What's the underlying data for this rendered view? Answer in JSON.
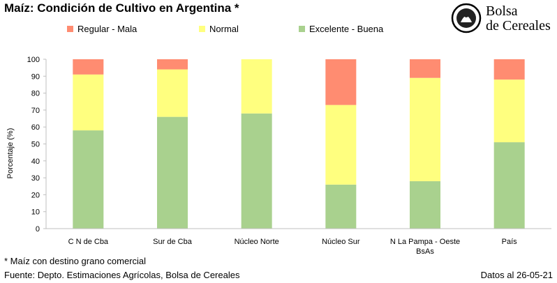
{
  "title": "Maíz: Condición de Cultivo en Argentina *",
  "logo": {
    "line1": "Bolsa",
    "line2": "de Cereales"
  },
  "footnote": "* Maíz con destino grano comercial",
  "source": "Fuente: Depto. Estimaciones Agrícolas, Bolsa de Cereales",
  "date": "Datos al 26-05-21",
  "chart_data": {
    "type": "bar",
    "stacked": true,
    "title": "Maíz: Condición de Cultivo en Argentina *",
    "ylabel": "Porcentaje (%)",
    "xlabel": "",
    "ylim": [
      0,
      100
    ],
    "yticks": [
      0,
      10,
      20,
      30,
      40,
      50,
      60,
      70,
      80,
      90,
      100
    ],
    "categories": [
      "C N de Cba",
      "Sur de Cba",
      "Núcleo Norte",
      "Núcleo Sur",
      "N La Pampa - Oeste BsAs",
      "País"
    ],
    "series": [
      {
        "name": "Excelente - Buena",
        "color": "#a9d18e",
        "values": [
          58,
          66,
          68,
          26,
          28,
          51
        ]
      },
      {
        "name": "Normal",
        "color": "#ffff7f",
        "values": [
          33,
          28,
          32,
          47,
          61,
          37
        ]
      },
      {
        "name": "Regular - Mala",
        "color": "#ff8c71",
        "values": [
          9,
          6,
          0,
          27,
          11,
          12
        ]
      }
    ],
    "legend_order": [
      "Regular - Mala",
      "Normal",
      "Excelente - Buena"
    ],
    "legend_position": "top",
    "grid": false
  }
}
